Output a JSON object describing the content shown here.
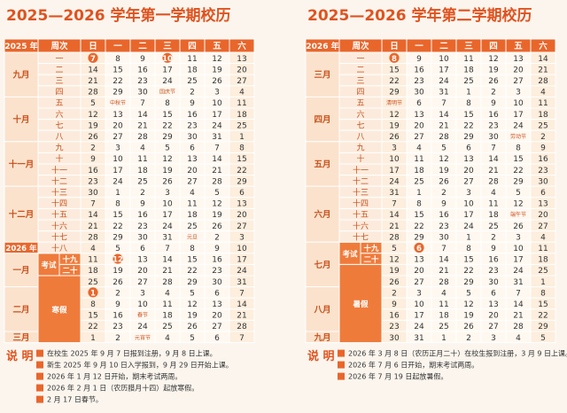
{
  "calendars": [
    {
      "title": "2025—2026 学年第一学期校历",
      "year_label": "2025 年",
      "headers": [
        "周次",
        "日",
        "一",
        "二",
        "三",
        "四",
        "五",
        "六"
      ],
      "rows": [
        {
          "month": "九月",
          "week": "一",
          "days": [
            {
              "text": "7",
              "circled": true
            },
            "8",
            "9",
            {
              "text": "10",
              "circled": true
            },
            "11",
            "12",
            "13"
          ]
        },
        {
          "week": "二",
          "days": [
            "14",
            "15",
            "16",
            "17",
            "18",
            "19",
            "20"
          ]
        },
        {
          "week": "三",
          "days": [
            "21",
            "22",
            "23",
            "24",
            "25",
            "26",
            "27"
          ]
        },
        {
          "week": "四",
          "days": [
            "28",
            "29",
            "30",
            "国庆节",
            "2",
            "3",
            "4"
          ]
        },
        {
          "month": "十月",
          "week": "五",
          "days": [
            "5",
            "中秋节",
            "7",
            "8",
            "9",
            "10",
            "11"
          ]
        },
        {
          "week": "六",
          "days": [
            "12",
            "13",
            "14",
            "15",
            "16",
            "17",
            "18"
          ]
        },
        {
          "week": "七",
          "days": [
            "19",
            "20",
            "21",
            "22",
            "23",
            "24",
            "25"
          ]
        },
        {
          "week": "八",
          "days": [
            "26",
            "27",
            "28",
            "29",
            "30",
            "31",
            "1"
          ]
        },
        {
          "month": "十一月",
          "week": "九",
          "days": [
            "2",
            "3",
            "4",
            "5",
            "6",
            "7",
            "8"
          ]
        },
        {
          "week": "十",
          "days": [
            "9",
            "10",
            "11",
            "12",
            "13",
            "14",
            "15"
          ]
        },
        {
          "week": "十一",
          "days": [
            "16",
            "17",
            "18",
            "19",
            "20",
            "21",
            "22"
          ]
        },
        {
          "week": "十二",
          "days": [
            "23",
            "24",
            "25",
            "26",
            "27",
            "28",
            "29"
          ]
        },
        {
          "month": "十二月",
          "week": "十三",
          "days": [
            "30",
            "1",
            "2",
            "3",
            "4",
            "5",
            "6"
          ]
        },
        {
          "week": "十四",
          "days": [
            "7",
            "8",
            "9",
            "10",
            "11",
            "12",
            "13"
          ]
        },
        {
          "week": "十五",
          "days": [
            "14",
            "15",
            "16",
            "17",
            "18",
            "19",
            "20"
          ]
        },
        {
          "week": "十六",
          "days": [
            "21",
            "22",
            "23",
            "24",
            "25",
            "26",
            "27"
          ]
        },
        {
          "week": "十七",
          "days": [
            "28",
            "29",
            "30",
            "31",
            "元旦",
            "2",
            "3"
          ]
        },
        {
          "year": "2026 年",
          "week": "十八",
          "days": [
            "4",
            "5",
            "6",
            "7",
            "8",
            "9",
            "10"
          ]
        },
        {
          "month": "一月",
          "phase": "考试",
          "week": "十九",
          "days": [
            "11",
            {
              "text": "12",
              "circled": true
            },
            "13",
            "14",
            "15",
            "16",
            "17"
          ]
        },
        {
          "week": "二十",
          "days": [
            "18",
            "19",
            "20",
            "21",
            "22",
            "23",
            "24"
          ]
        },
        {
          "phase": "寒假",
          "days": [
            "25",
            "26",
            "27",
            "28",
            "29",
            "30",
            "31"
          ]
        },
        {
          "month": "二月",
          "days": [
            {
              "text": "1",
              "circled": true
            },
            "2",
            "3",
            "4",
            "5",
            "6",
            "7"
          ]
        },
        {
          "days": [
            "8",
            "9",
            "10",
            "11",
            "12",
            "13",
            "14"
          ]
        },
        {
          "days": [
            "15",
            "16",
            "春节",
            "18",
            "19",
            "20",
            "21"
          ]
        },
        {
          "days": [
            "22",
            "23",
            "24",
            "25",
            "26",
            "27",
            "28"
          ]
        },
        {
          "month": "三月",
          "days": [
            "1",
            "2",
            "元宵节",
            "4",
            "5",
            "6",
            "7"
          ]
        }
      ],
      "notes_title": "说 明",
      "notes": [
        "在校生 2025 年 9 月 7 日报到注册，9 月 8 日上课。",
        "新生 2025 年 9 月 10 日入学报到，9 月 29 日开始上课。",
        "2026 年 1 月 12 日开始，期末考试两周。",
        "2026 年 2 月 1 日（农历腊月十四）起放寒假。",
        "2 月 17 日春节。"
      ]
    },
    {
      "title": "2025—2026 学年第二学期校历",
      "year_label": "2026 年",
      "headers": [
        "周次",
        "日",
        "一",
        "二",
        "三",
        "四",
        "五",
        "六"
      ],
      "rows": [
        {
          "month": "三月",
          "week": "一",
          "days": [
            {
              "text": "8",
              "circled": true
            },
            "9",
            "10",
            "11",
            "12",
            "13",
            "14"
          ]
        },
        {
          "week": "二",
          "days": [
            "15",
            "16",
            "17",
            "18",
            "19",
            "20",
            "21"
          ]
        },
        {
          "week": "三",
          "days": [
            "22",
            "23",
            "24",
            "25",
            "26",
            "27",
            "28"
          ]
        },
        {
          "week": "四",
          "days": [
            "29",
            "30",
            "31",
            "1",
            "2",
            "3",
            "4"
          ]
        },
        {
          "month": "四月",
          "week": "五",
          "days": [
            "清明节",
            "6",
            "7",
            "8",
            "9",
            "10",
            "11"
          ]
        },
        {
          "week": "六",
          "days": [
            "12",
            "13",
            "14",
            "15",
            "16",
            "17",
            "18"
          ]
        },
        {
          "week": "七",
          "days": [
            "19",
            "20",
            "21",
            "22",
            "23",
            "24",
            "25"
          ]
        },
        {
          "week": "八",
          "days": [
            "26",
            "27",
            "28",
            "29",
            "30",
            "劳动节",
            "2"
          ]
        },
        {
          "month": "五月",
          "week": "九",
          "days": [
            "3",
            "4",
            "5",
            "6",
            "7",
            "8",
            "9"
          ]
        },
        {
          "week": "十",
          "days": [
            "10",
            "11",
            "12",
            "13",
            "14",
            "15",
            "16"
          ]
        },
        {
          "week": "十一",
          "days": [
            "17",
            "18",
            "19",
            "20",
            "21",
            "22",
            "23"
          ]
        },
        {
          "week": "十二",
          "days": [
            "24",
            "25",
            "26",
            "27",
            "28",
            "29",
            "30"
          ]
        },
        {
          "month": "六月",
          "week": "十三",
          "days": [
            "31",
            "1",
            "2",
            "3",
            "4",
            "5",
            "6"
          ]
        },
        {
          "week": "十四",
          "days": [
            "7",
            "8",
            "9",
            "10",
            "11",
            "12",
            "13"
          ]
        },
        {
          "week": "十五",
          "days": [
            "14",
            "15",
            "16",
            "17",
            "18",
            "端午节",
            "20"
          ]
        },
        {
          "week": "十六",
          "days": [
            "21",
            "22",
            "23",
            "24",
            "25",
            "26",
            "27"
          ]
        },
        {
          "week": "十七",
          "days": [
            "28",
            "29",
            "30",
            "1",
            "2",
            "3",
            "4"
          ]
        },
        {
          "month": "七月",
          "phase": "考试",
          "week": "十九",
          "days": [
            "5",
            {
              "text": "6",
              "circled": true
            },
            "7",
            "8",
            "9",
            "10",
            "11"
          ]
        },
        {
          "week": "二十",
          "days": [
            "12",
            "13",
            "14",
            "15",
            "16",
            "17",
            "18"
          ]
        },
        {
          "phase": "暑假",
          "days": [
            "19",
            "20",
            "21",
            "22",
            "23",
            "24",
            "25"
          ]
        },
        {
          "days": [
            "26",
            "27",
            "28",
            "29",
            "30",
            "31",
            "1"
          ]
        },
        {
          "month": "八月",
          "days": [
            "2",
            "3",
            "4",
            "5",
            "6",
            "7",
            "8"
          ]
        },
        {
          "days": [
            "9",
            "10",
            "11",
            "12",
            "13",
            "14",
            "15"
          ]
        },
        {
          "days": [
            "16",
            "17",
            "18",
            "19",
            "20",
            "21",
            "22"
          ]
        },
        {
          "days": [
            "23",
            "24",
            "25",
            "26",
            "27",
            "28",
            "29"
          ]
        },
        {
          "month": "九月",
          "days": [
            "30",
            "31",
            "1",
            "2",
            "3",
            "4",
            "5"
          ]
        }
      ],
      "notes_title": "说 明",
      "notes": [
        "2026 年 3 月 8 日（农历正月二十）在校生报到注册，3 月 9 日上课。",
        "2026 年 7 月 6 日开始，期末考试两周。",
        "2026 年 7 月 19 日起放暑假。"
      ]
    }
  ]
}
